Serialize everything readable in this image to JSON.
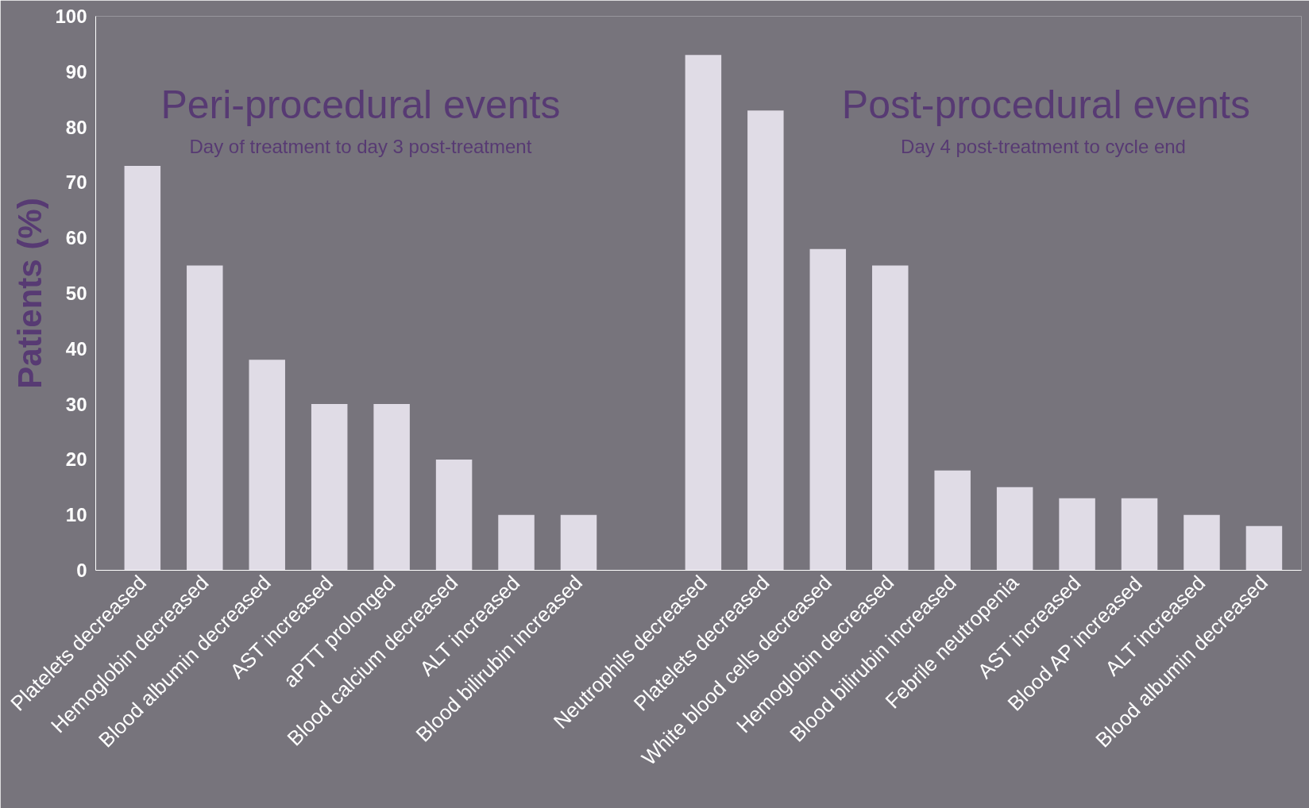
{
  "chart_data": {
    "type": "bar",
    "ylabel": "Patients (%)",
    "categories": [
      "Platelets decreased",
      "Hemoglobin decreased",
      "Blood albumin decreased",
      "AST increased",
      "aPTT prolonged",
      "Blood calcium decreased",
      "ALT increased",
      "Blood bilirubin increased",
      null,
      "Neutrophils decreased",
      "Platelets decreased",
      "White blood cells decreased",
      "Hemoglobin decreased",
      "Blood bilirubin increased",
      "Febrile neutropenia",
      "AST increased",
      "Blood AP increased",
      "ALT increased",
      "Blood albumin decreased"
    ],
    "values": [
      73,
      55,
      38,
      30,
      30,
      20,
      10,
      10,
      null,
      93,
      83,
      58,
      55,
      18,
      15,
      13,
      13,
      10,
      8
    ],
    "color": "#e0dce6",
    "ylim": [
      0,
      100
    ],
    "yticks": [
      0,
      10,
      20,
      30,
      40,
      50,
      60,
      70,
      80,
      90,
      100
    ],
    "grid": false,
    "annotations": [
      "Peri-procedural events",
      "Day of treatment to day 3 post-treatment",
      "Post-procedural events",
      "Day  4 post-treatment to cycle end"
    ]
  }
}
